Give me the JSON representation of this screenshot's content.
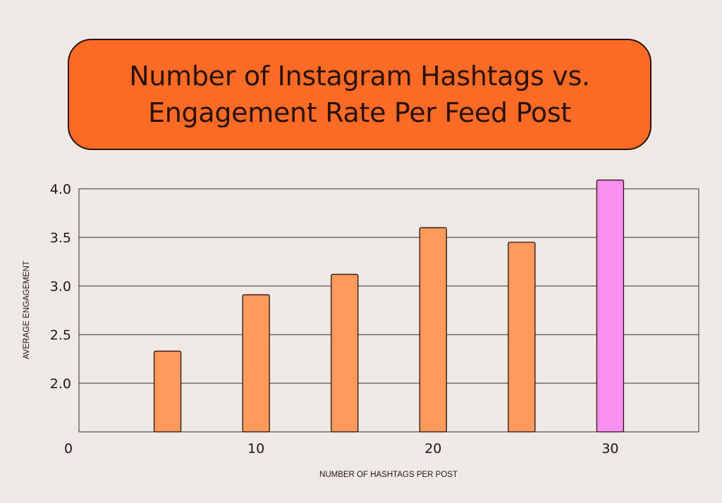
{
  "chart_data": {
    "type": "bar",
    "title_lines": [
      "Number of Instagram Hashtags vs.",
      "Engagement Rate Per Feed Post"
    ],
    "xlabel": "NUMBER OF HASHTAGS PER POST",
    "ylabel": "AVERAGE ENGAGEMENT",
    "x": [
      5,
      10,
      15,
      20,
      25,
      30
    ],
    "values": [
      2.33,
      2.91,
      3.12,
      3.6,
      3.45,
      4.09
    ],
    "highlight_index": 5,
    "xlim": [
      0,
      35
    ],
    "ylim": [
      1.5,
      4.0
    ],
    "x_ticks": [
      0,
      10,
      20,
      30
    ],
    "x_tick_labels": [
      "0",
      "10",
      "20",
      "30"
    ],
    "y_ticks": [
      2.0,
      2.5,
      3.0,
      3.5,
      4.0
    ],
    "y_tick_labels": [
      "2.0",
      "2.5",
      "3.0",
      "3.5",
      "4.0"
    ],
    "grid": true,
    "colors": {
      "background": "#efe9e5",
      "title_box": "#fb6b26",
      "bar": "#fd9a5c",
      "bar_highlight": "#fc8ff2",
      "outline": "#2a120a",
      "grid": "#3a2a25"
    }
  }
}
